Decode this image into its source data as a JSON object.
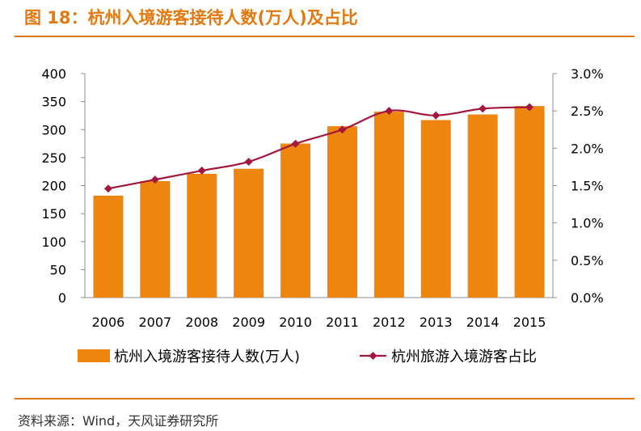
{
  "figure_title": "图 18：杭州入境游客接待人数(万人)及占比",
  "source": "资料来源：Wind，天风证券研究所",
  "colors": {
    "bar": "#ee850f",
    "line": "#a3173d",
    "accent": "#e3780f"
  },
  "chart_data": {
    "type": "bar",
    "title": "杭州入境游客接待人数(万人)及占比",
    "categories": [
      "2006",
      "2007",
      "2008",
      "2009",
      "2010",
      "2011",
      "2012",
      "2013",
      "2014",
      "2015"
    ],
    "series": [
      {
        "name": "杭州入境游客接待人数(万人)",
        "type": "bar",
        "axis": "left",
        "values": [
          182,
          208,
          221,
          230,
          275,
          306,
          332,
          317,
          327,
          342
        ]
      },
      {
        "name": "杭州旅游入境游客占比",
        "type": "line",
        "axis": "right",
        "marker": "diamond",
        "values": [
          1.46,
          1.58,
          1.7,
          1.82,
          2.06,
          2.25,
          2.5,
          2.44,
          2.53,
          2.55
        ]
      }
    ],
    "y_left": {
      "min": 0,
      "max": 400,
      "step": 50,
      "tick_labels": [
        "0",
        "50",
        "100",
        "150",
        "200",
        "250",
        "300",
        "350",
        "400"
      ]
    },
    "y_right": {
      "min": 0,
      "max": 3.0,
      "step": 0.5,
      "tick_labels": [
        "0.0%",
        "0.5%",
        "1.0%",
        "1.5%",
        "2.0%",
        "2.5%",
        "3.0%"
      ]
    },
    "grid": false,
    "legend_position": "bottom"
  }
}
